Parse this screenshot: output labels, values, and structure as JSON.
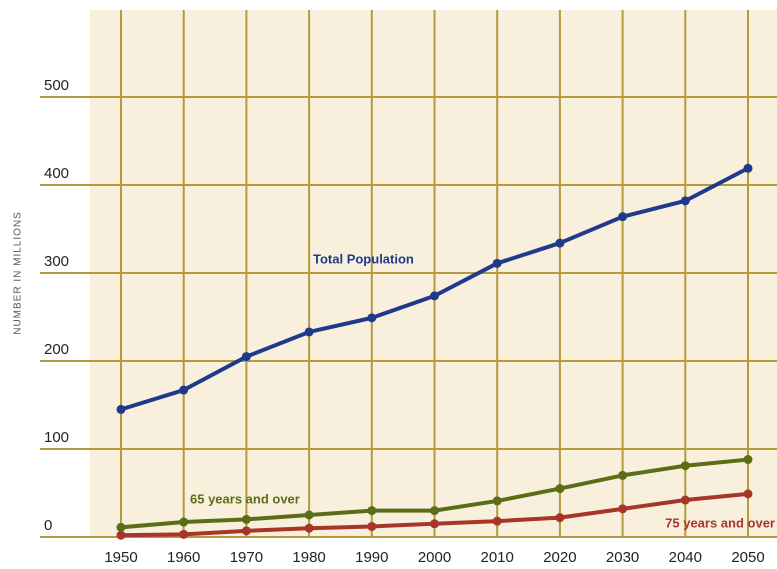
{
  "chart_data": {
    "type": "line",
    "y_axis_label": "NUMBER IN MILLIONS",
    "x": [
      1950,
      1960,
      1970,
      1980,
      1990,
      2000,
      2010,
      2020,
      2030,
      2040,
      2050
    ],
    "xlim": [
      1950,
      2050
    ],
    "ylim": [
      0,
      600
    ],
    "yticks": [
      0,
      100,
      200,
      300,
      400,
      500
    ],
    "grid": true,
    "series": [
      {
        "name": "Total Population",
        "color": "#1f3a8c",
        "values": [
          145,
          167,
          205,
          233,
          249,
          274,
          311,
          334,
          364,
          382,
          419
        ]
      },
      {
        "name": "65 years and over",
        "color": "#5b6e17",
        "values": [
          11,
          17,
          20,
          25,
          30,
          30,
          41,
          55,
          70,
          81,
          88
        ]
      },
      {
        "name": "75 years and over",
        "color": "#a8352a",
        "values": [
          2,
          3,
          7,
          10,
          12,
          15,
          18,
          22,
          32,
          42,
          49
        ]
      }
    ]
  }
}
